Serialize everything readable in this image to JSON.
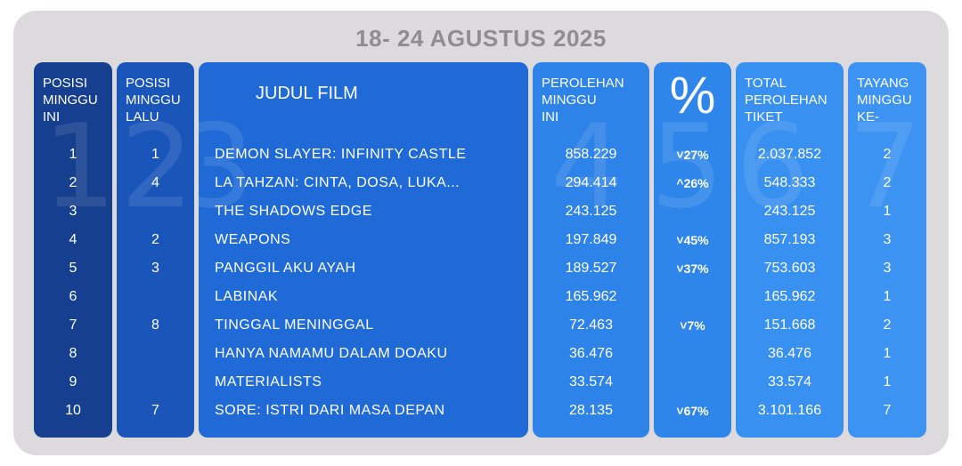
{
  "title": "18- 24 AGUSTUS 2025",
  "headers": {
    "rank": "POSISI\nMINGGU\nINI",
    "last": "POSISI\nMINGGU\nLALU",
    "film": "JUDUL FILM",
    "weekly": "PEROLEHAN\nMINGGU\nINI",
    "pct": "%",
    "total": "TOTAL\nPEROLEHAN\nTIKET",
    "weeks": "TAYANG\nMINGGU\nKE-"
  },
  "colors": {
    "card_bg": "#dcdadd",
    "title": "#8f8d90",
    "col1": "#163f8f",
    "col2": "#1a55ba",
    "col3": "#1f6ad6",
    "col4": "#2e83e8",
    "col5": "#2e86ea",
    "col6": "#3890f0",
    "col7": "#3d93f2"
  },
  "rows": [
    {
      "rank": "1",
      "last": "1",
      "film": "DEMON SLAYER: INFINITY CASTLE",
      "weekly": "858.229",
      "pct": "˅27%",
      "total": "2.037.852",
      "weeks": "2"
    },
    {
      "rank": "2",
      "last": "4",
      "film": "LA TAHZAN: CINTA, DOSA, LUKA...",
      "weekly": "294.414",
      "pct": "^26%",
      "total": "548.333",
      "weeks": "2"
    },
    {
      "rank": "3",
      "last": "",
      "film": "THE SHADOWS EDGE",
      "weekly": "243.125",
      "pct": "",
      "total": "243.125",
      "weeks": "1"
    },
    {
      "rank": "4",
      "last": "2",
      "film": "WEAPONS",
      "weekly": "197.849",
      "pct": "˅45%",
      "total": "857.193",
      "weeks": "3"
    },
    {
      "rank": "5",
      "last": "3",
      "film": "PANGGIL AKU AYAH",
      "weekly": "189.527",
      "pct": "˅37%",
      "total": "753.603",
      "weeks": "3"
    },
    {
      "rank": "6",
      "last": "",
      "film": "LABINAK",
      "weekly": "165.962",
      "pct": "",
      "total": "165.962",
      "weeks": "1"
    },
    {
      "rank": "7",
      "last": "8",
      "film": "TINGGAL MENINGGAL",
      "weekly": "72.463",
      "pct": "˅7%",
      "total": "151.668",
      "weeks": "2"
    },
    {
      "rank": "8",
      "last": "",
      "film": "HANYA NAMAMU DALAM DOAKU",
      "weekly": "36.476",
      "pct": "",
      "total": "36.476",
      "weeks": "1"
    },
    {
      "rank": "9",
      "last": "",
      "film": "MATERIALISTS",
      "weekly": "33.574",
      "pct": "",
      "total": "33.574",
      "weeks": "1"
    },
    {
      "rank": "10",
      "last": "7",
      "film": "SORE: ISTRI DARI MASA DEPAN",
      "weekly": "28.135",
      "pct": "˅67%",
      "total": "3.101.166",
      "weeks": "7"
    }
  ],
  "background_digits": [
    "1",
    "2",
    "3",
    "4",
    "5",
    "6",
    "7"
  ]
}
